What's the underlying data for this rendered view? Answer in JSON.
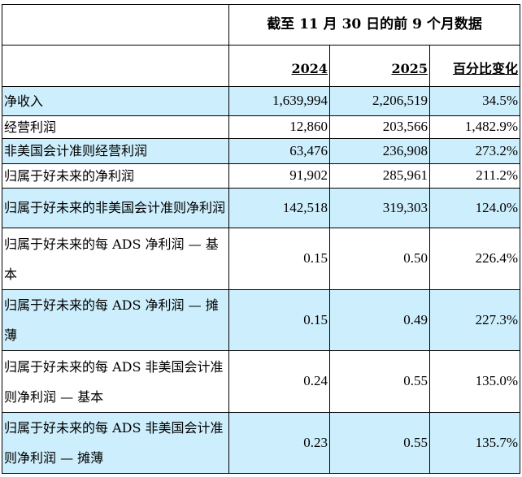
{
  "header": {
    "period_title": "截至 11 月 30 日的前 9 个月数据",
    "columns": [
      "2024",
      "2025",
      "百分比变化"
    ]
  },
  "rows": [
    {
      "label": "净收入",
      "v2024": "1,639,994",
      "v2025": "2,206,519",
      "change": "34.5%"
    },
    {
      "label": "经营利润",
      "v2024": "12,860",
      "v2025": "203,566",
      "change": "1,482.9%"
    },
    {
      "label": "非美国会计准则经营利润",
      "v2024": "63,476",
      "v2025": "236,908",
      "change": "273.2%"
    },
    {
      "label": "归属于好未来的净利润",
      "v2024": "91,902",
      "v2025": "285,961",
      "change": "211.2%"
    },
    {
      "label": "归属于好未来的非美国会计准则净利润",
      "v2024": "142,518",
      "v2025": "319,303",
      "change": "124.0%"
    },
    {
      "label": "归属于好未来的每 ADS 净利润 — 基本",
      "v2024": "0.15",
      "v2025": "0.50",
      "change": "226.4%"
    },
    {
      "label": "归属于好未来的每 ADS 净利润 — 摊薄",
      "v2024": "0.15",
      "v2025": "0.49",
      "change": "227.3%"
    },
    {
      "label": "归属于好未来的每 ADS 非美国会计准则净利润 — 基本",
      "v2024": "0.24",
      "v2025": "0.55",
      "change": "135.0%"
    },
    {
      "label": "归属于好未来的每 ADS 非美国会计准则净利润 — 摊薄",
      "v2024": "0.23",
      "v2025": "0.55",
      "change": "135.7%"
    }
  ]
}
